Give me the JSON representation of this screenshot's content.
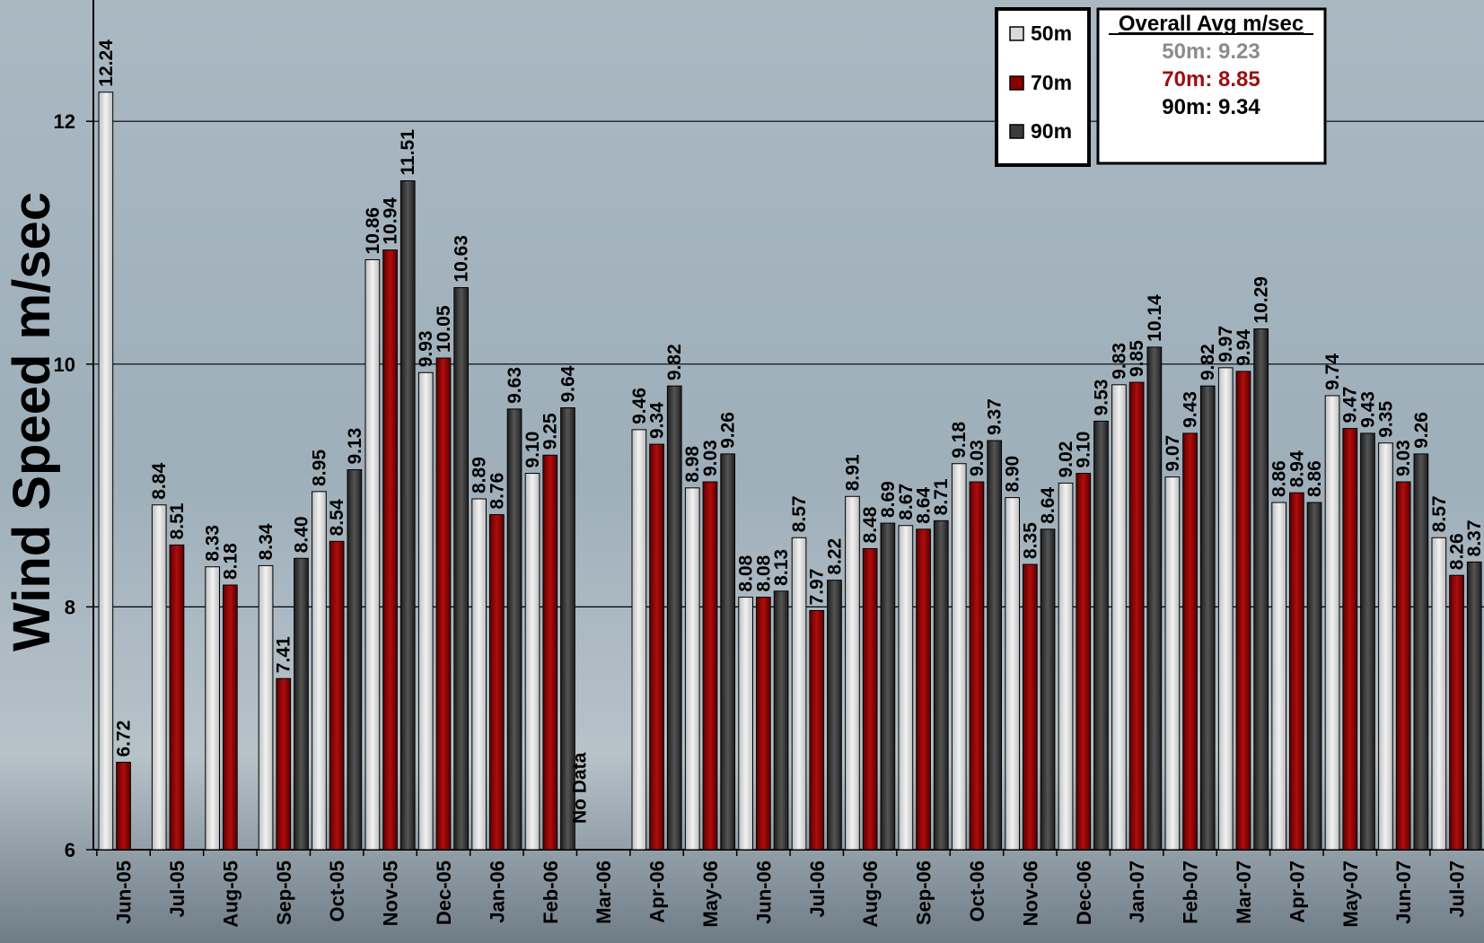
{
  "chart_data": {
    "type": "bar",
    "ylabel": "Wind Speed m/sec",
    "ylim": [
      6,
      13
    ],
    "yticks": [
      6,
      8,
      10,
      12
    ],
    "grid": true,
    "legend_position": "top-right",
    "categories": [
      "Jun-05",
      "Jul-05",
      "Aug-05",
      "Sep-05",
      "Oct-05",
      "Nov-05",
      "Dec-05",
      "Jan-06",
      "Feb-06",
      "Mar-06",
      "Apr-06",
      "May-06",
      "Jun-06",
      "Jul-06",
      "Aug-06",
      "Sep-06",
      "Oct-06",
      "Nov-06",
      "Dec-06",
      "Jan-07",
      "Feb-07",
      "Mar-07",
      "Apr-07",
      "May-07",
      "Jun-07",
      "Jul-07"
    ],
    "series": [
      {
        "name": "50m",
        "color": "#d9d9d9",
        "values": [
          12.24,
          8.84,
          8.33,
          8.34,
          8.95,
          10.86,
          9.93,
          8.89,
          9.1,
          null,
          9.46,
          8.98,
          8.08,
          8.57,
          8.91,
          8.67,
          9.18,
          8.9,
          9.02,
          9.83,
          9.07,
          9.97,
          8.86,
          9.74,
          9.35,
          8.57
        ],
        "labels": [
          "12.24",
          "8.84",
          "8.33",
          "8.34",
          "8.95",
          "10.86",
          "9.93",
          "8.89",
          "9.10",
          "",
          "9.46",
          "8.98",
          "8.08",
          "8.57",
          "8.91",
          "8.67",
          "9.18",
          "8.90",
          "9.02",
          "9.83",
          "9.07",
          "9.97",
          "8.86",
          "9.74",
          "9.35",
          "8.57"
        ]
      },
      {
        "name": "70m",
        "color": "#8b0000",
        "values": [
          6.72,
          8.51,
          8.18,
          7.41,
          8.54,
          10.94,
          10.05,
          8.76,
          9.25,
          null,
          9.34,
          9.03,
          8.08,
          7.97,
          8.48,
          8.64,
          9.03,
          8.35,
          9.1,
          9.85,
          9.43,
          9.94,
          8.94,
          9.47,
          9.03,
          8.26
        ],
        "labels": [
          "6.72",
          "8.51",
          "8.18",
          "7.41",
          "8.54",
          "10.94",
          "10.05",
          "8.76",
          "9.25",
          "",
          "9.34",
          "9.03",
          "8.08",
          "7.97",
          "8.48",
          "8.64",
          "9.03",
          "8.35",
          "9.10",
          "9.85",
          "9.43",
          "9.94",
          "8.94",
          "9.47",
          "9.03",
          "8.26"
        ]
      },
      {
        "name": "90m",
        "color": "#3c3c3c",
        "values": [
          null,
          null,
          null,
          8.4,
          9.13,
          11.51,
          10.63,
          9.63,
          9.64,
          null,
          9.82,
          9.26,
          8.13,
          8.22,
          8.69,
          8.71,
          9.37,
          8.64,
          9.53,
          10.14,
          9.82,
          10.29,
          8.86,
          9.43,
          9.26,
          8.37
        ],
        "labels": [
          "",
          "",
          "",
          "8.40",
          "9.13",
          "11.51",
          "10.63",
          "9.63",
          "9.64",
          "",
          "9.82",
          "9.26",
          "8.13",
          "8.22",
          "8.69",
          "8.71",
          "9.37",
          "8.64",
          "9.53",
          "10.14",
          "9.82",
          "10.29",
          "8.86",
          "9.43",
          "9.26",
          "8.37"
        ]
      }
    ],
    "annotations": [
      {
        "category": "Mar-06",
        "text": "No Data"
      }
    ]
  },
  "summary": {
    "title": "Overall Avg m/sec",
    "lines": [
      {
        "text": "50m: 9.23",
        "color": "#8c8c8c"
      },
      {
        "text": "70m: 8.85",
        "color": "#9c0f0f"
      },
      {
        "text": "90m: 9.34",
        "color": "#000000"
      }
    ]
  }
}
